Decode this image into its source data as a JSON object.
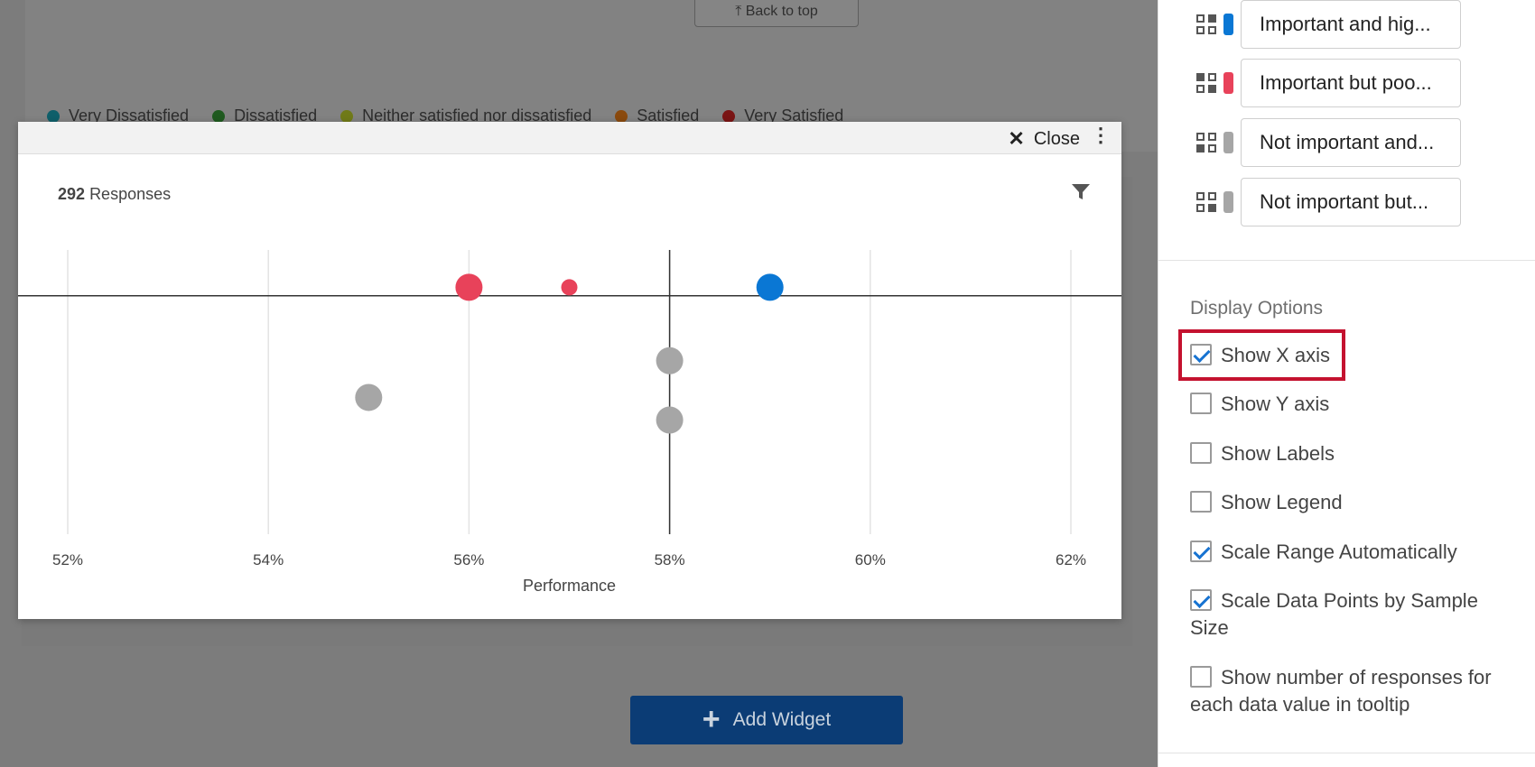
{
  "background": {
    "back_to_top": "⤒ Back to top",
    "legend": [
      {
        "label": "Very Dissatisfied",
        "color": "#0f5f6a"
      },
      {
        "label": "Dissatisfied",
        "color": "#1f5a1f"
      },
      {
        "label": "Neither satisfied nor dissatisfied",
        "color": "#707a18"
      },
      {
        "label": "Satisfied",
        "color": "#8a4a0e"
      },
      {
        "label": "Very Satisfied",
        "color": "#7a1414"
      }
    ],
    "add_widget": "Add Widget"
  },
  "modal": {
    "close_label": "Close",
    "responses_count": "292",
    "responses_label": "Responses"
  },
  "chart_data": {
    "type": "scatter",
    "xlabel": "Performance",
    "xlim": [
      51.8,
      62.0
    ],
    "x_ticks": [
      "52%",
      "54%",
      "56%",
      "58%",
      "60%",
      "62%"
    ],
    "x_tick_values": [
      52,
      54,
      56,
      58,
      60,
      62
    ],
    "y_axis_shown": false,
    "y_range": [
      0,
      10
    ],
    "crosshair": {
      "x": 58,
      "y": 7.1
    },
    "points": [
      {
        "x": 56,
        "y": 7.4,
        "size": "large",
        "color": "#e8425a"
      },
      {
        "x": 57,
        "y": 7.4,
        "size": "small",
        "color": "#e8425a"
      },
      {
        "x": 59,
        "y": 7.4,
        "size": "large",
        "color": "#0a77d4"
      },
      {
        "x": 58,
        "y": 4.8,
        "size": "medium",
        "color": "#a6a6a6"
      },
      {
        "x": 55,
        "y": 3.5,
        "size": "medium",
        "color": "#a6a6a6"
      },
      {
        "x": 58,
        "y": 2.7,
        "size": "medium",
        "color": "#a6a6a6"
      }
    ],
    "grid": true
  },
  "panel": {
    "segments": [
      {
        "label": "Important and hig...",
        "color": "#0a77d4"
      },
      {
        "label": "Important but poo...",
        "color": "#e8425a"
      },
      {
        "label": "Not important and...",
        "color": "#a6a6a6"
      },
      {
        "label": "Not important but...",
        "color": "#a6a6a6"
      }
    ],
    "display_options_title": "Display Options",
    "options": [
      {
        "label": "Show X axis",
        "checked": true
      },
      {
        "label": "Show Y axis",
        "checked": false
      },
      {
        "label": "Show Labels",
        "checked": false
      },
      {
        "label": "Show Legend",
        "checked": false
      },
      {
        "label": "Scale Range Automatically",
        "checked": true
      },
      {
        "label": "Scale Data Points by Sample Size",
        "checked": true
      },
      {
        "label": "Show number of responses for each data value in tooltip",
        "checked": false
      }
    ]
  }
}
